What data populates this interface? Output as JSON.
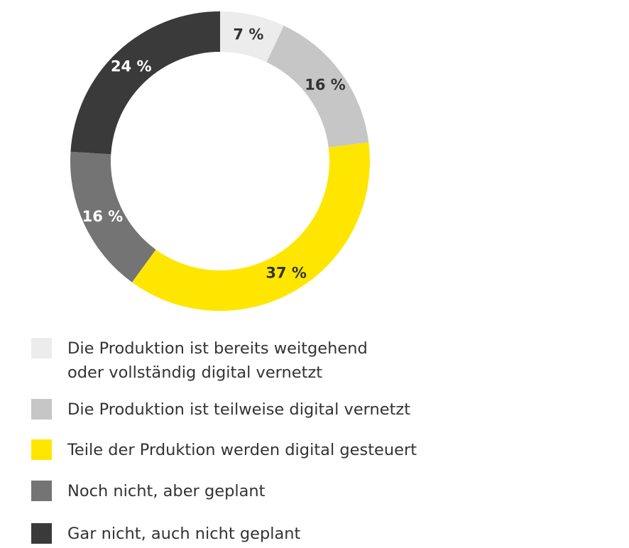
{
  "chart_data": {
    "type": "pie",
    "variant": "donut",
    "categories": [
      "Die Produktion ist bereits weitgehend\noder vollständig digital vernetzt",
      "Die Produktion ist teilweise digital vernetzt",
      "Teile der Prduktion werden digital gesteuert",
      "Noch nicht, aber geplant",
      "Gar nicht, auch nicht geplant"
    ],
    "values": [
      7,
      16,
      37,
      16,
      24
    ],
    "value_labels": [
      "7 %",
      "16 %",
      "37 %",
      "16 %",
      "24 %"
    ],
    "colors": [
      "#ececec",
      "#c6c6c6",
      "#ffe600",
      "#747474",
      "#3a3a3a"
    ],
    "label_colors": [
      "#333333",
      "#333333",
      "#333333",
      "#ffffff",
      "#ffffff"
    ],
    "legend_position": "bottom-left"
  }
}
